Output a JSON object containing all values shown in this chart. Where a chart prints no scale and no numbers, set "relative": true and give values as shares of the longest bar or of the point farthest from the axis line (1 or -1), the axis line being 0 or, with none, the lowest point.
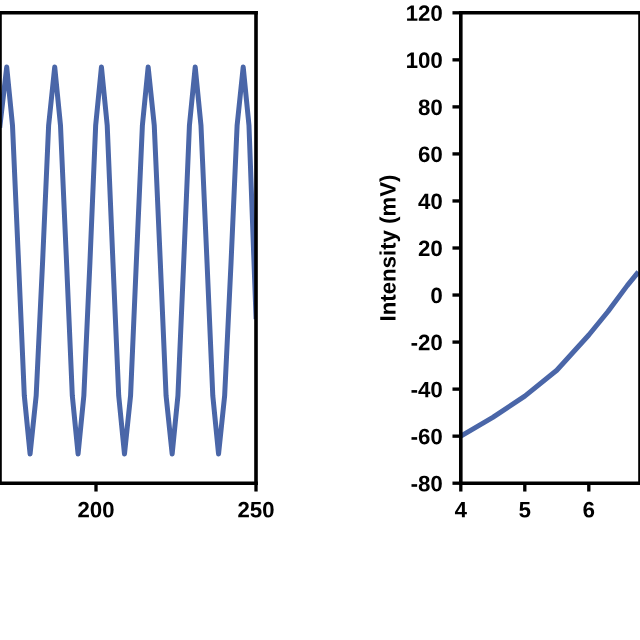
{
  "chart_data": [
    {
      "type": "line",
      "relative": true,
      "tick_labels": "x",
      "xlim": [
        170,
        250
      ],
      "xticks": [
        200,
        250
      ],
      "grid": false,
      "legend": false,
      "series": [
        {
          "color": "#4a66a8",
          "x": [
            170,
            172.1,
            173.9,
            175.8,
            177.6,
            179.4,
            181.3,
            183.3,
            185.2,
            187.1,
            188.9,
            190.8,
            192.6,
            194.4,
            196.2,
            198.1,
            199.9,
            201.7,
            203.5,
            205.3,
            207.1,
            208.9,
            210.8,
            212.6,
            214.5,
            216.3,
            218.2,
            220.1,
            221.9,
            223.8,
            225.6,
            227.4,
            229.2,
            231.0,
            232.8,
            234.7,
            236.5,
            238.3,
            240.2,
            242.2,
            244.1,
            246.0,
            247.8,
            250
          ],
          "values": [
            0.86,
            1,
            0.86,
            0.53,
            0.21,
            0.07,
            0.21,
            0.53,
            0.86,
            1,
            0.86,
            0.53,
            0.21,
            0.07,
            0.21,
            0.53,
            0.86,
            1,
            0.86,
            0.53,
            0.21,
            0.07,
            0.21,
            0.53,
            0.86,
            1,
            0.86,
            0.53,
            0.21,
            0.07,
            0.21,
            0.53,
            0.86,
            1,
            0.86,
            0.53,
            0.21,
            0.07,
            0.21,
            0.53,
            0.86,
            1,
            0.86,
            0.4
          ]
        }
      ]
    },
    {
      "type": "line",
      "ylabel": "Intensity (mV)",
      "xlim": [
        4,
        6.8
      ],
      "xticks": [
        4,
        5,
        6
      ],
      "ylim": [
        -80,
        120
      ],
      "yticks": [
        -80,
        -60,
        -40,
        -20,
        0,
        20,
        40,
        60,
        80,
        100,
        120
      ],
      "grid": false,
      "legend": false,
      "series": [
        {
          "color": "#4a66a8",
          "x": [
            4,
            4.5,
            5,
            5.5,
            6,
            6.3,
            6.6,
            6.75
          ],
          "values": [
            -60,
            -52,
            -43,
            -32,
            -17,
            -7,
            4,
            9
          ]
        }
      ]
    }
  ]
}
